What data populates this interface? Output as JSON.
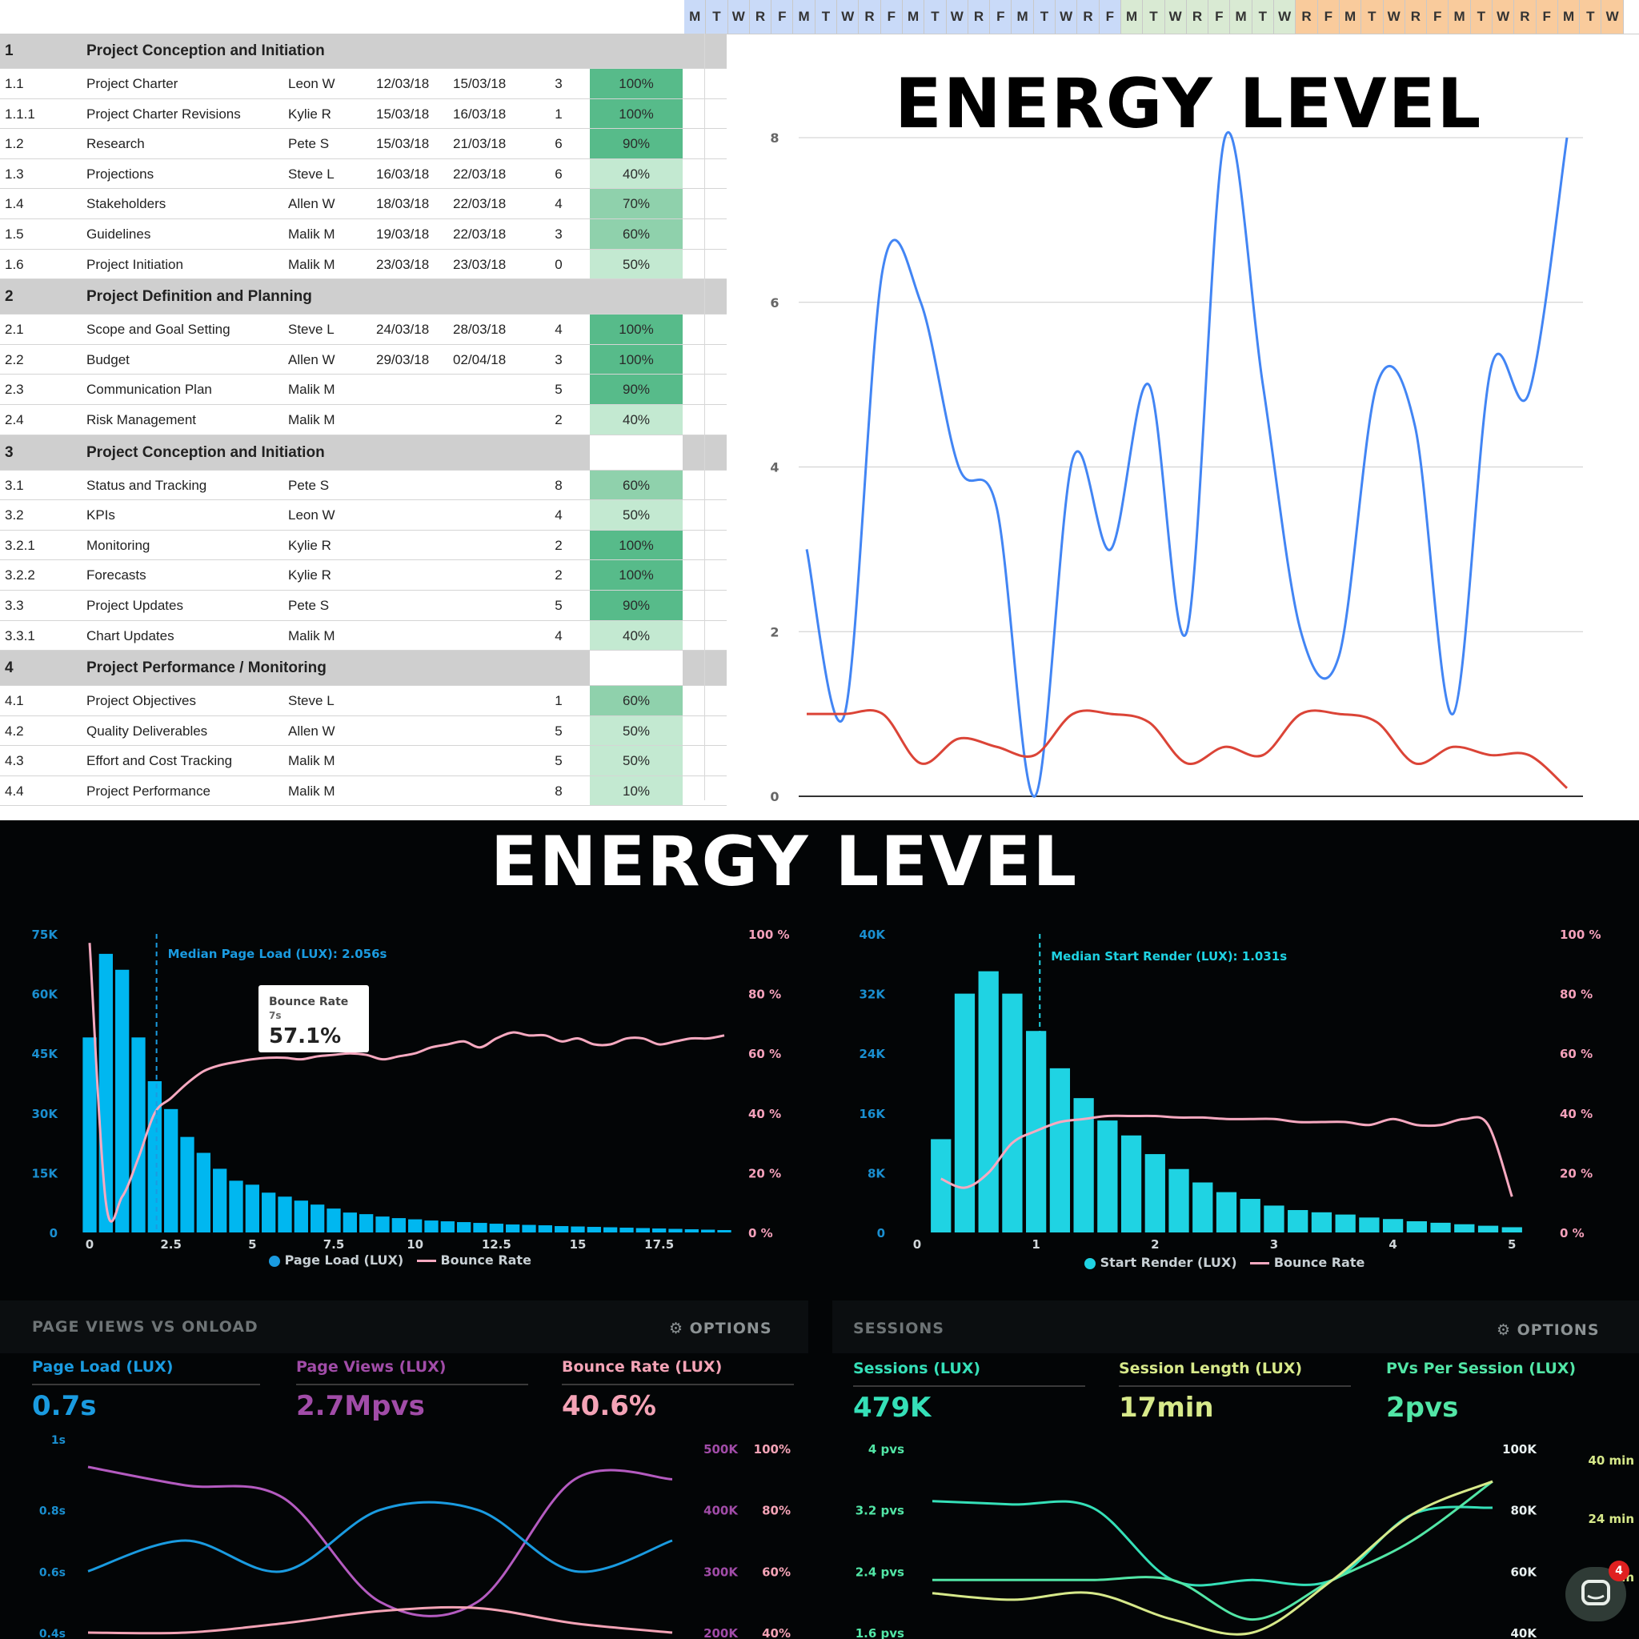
{
  "day_letters": [
    "M",
    "T",
    "W",
    "R",
    "F",
    "M",
    "T",
    "W",
    "R",
    "F",
    "M",
    "T",
    "W",
    "R",
    "F",
    "M",
    "T",
    "W",
    "R",
    "F",
    "M",
    "T",
    "W",
    "R",
    "F",
    "M",
    "T",
    "W",
    "R",
    "F",
    "M",
    "T",
    "W",
    "R",
    "F",
    "M",
    "T",
    "W",
    "R",
    "F",
    "M",
    "T",
    "W"
  ],
  "sheet_rows": [
    {
      "type": "group",
      "id": "1",
      "name": "Project Conception and Initiation"
    },
    {
      "type": "task",
      "id": "1.1",
      "name": "Project Charter",
      "owner": "Leon W",
      "start": "12/03/18",
      "end": "15/03/18",
      "days": "3",
      "pct": "100%"
    },
    {
      "type": "task",
      "id": "1.1.1",
      "name": "Project Charter Revisions",
      "owner": "Kylie R",
      "start": "15/03/18",
      "end": "16/03/18",
      "days": "1",
      "pct": "100%"
    },
    {
      "type": "task",
      "id": "1.2",
      "name": "Research",
      "owner": "Pete S",
      "start": "15/03/18",
      "end": "21/03/18",
      "days": "6",
      "pct": "90%"
    },
    {
      "type": "task",
      "id": "1.3",
      "name": "Projections",
      "owner": "Steve L",
      "start": "16/03/18",
      "end": "22/03/18",
      "days": "6",
      "pct": "40%"
    },
    {
      "type": "task",
      "id": "1.4",
      "name": "Stakeholders",
      "owner": "Allen W",
      "start": "18/03/18",
      "end": "22/03/18",
      "days": "4",
      "pct": "70%"
    },
    {
      "type": "task",
      "id": "1.5",
      "name": "Guidelines",
      "owner": "Malik M",
      "start": "19/03/18",
      "end": "22/03/18",
      "days": "3",
      "pct": "60%"
    },
    {
      "type": "task",
      "id": "1.6",
      "name": "Project Initiation",
      "owner": "Malik M",
      "start": "23/03/18",
      "end": "23/03/18",
      "days": "0",
      "pct": "50%"
    },
    {
      "type": "group",
      "id": "2",
      "name": "Project Definition and Planning"
    },
    {
      "type": "task",
      "id": "2.1",
      "name": "Scope and Goal Setting",
      "owner": "Steve L",
      "start": "24/03/18",
      "end": "28/03/18",
      "days": "4",
      "pct": "100%"
    },
    {
      "type": "task",
      "id": "2.2",
      "name": "Budget",
      "owner": "Allen W",
      "start": "29/03/18",
      "end": "02/04/18",
      "days": "3",
      "pct": "100%"
    },
    {
      "type": "task",
      "id": "2.3",
      "name": "Communication Plan",
      "owner": "Malik M",
      "start": "",
      "end": "",
      "days": "5",
      "pct": "90%"
    },
    {
      "type": "task",
      "id": "2.4",
      "name": "Risk Management",
      "owner": "Malik M",
      "start": "",
      "end": "",
      "days": "2",
      "pct": "40%"
    },
    {
      "type": "group",
      "id": "3",
      "name": "Project Conception and Initiation"
    },
    {
      "type": "task",
      "id": "3.1",
      "name": "Status and Tracking",
      "owner": "Pete S",
      "start": "",
      "end": "",
      "days": "8",
      "pct": "60%"
    },
    {
      "type": "task",
      "id": "3.2",
      "name": "KPIs",
      "owner": "Leon W",
      "start": "",
      "end": "",
      "days": "4",
      "pct": "50%"
    },
    {
      "type": "task",
      "id": "3.2.1",
      "name": "Monitoring",
      "owner": "Kylie R",
      "start": "",
      "end": "",
      "days": "2",
      "pct": "100%"
    },
    {
      "type": "task",
      "id": "3.2.2",
      "name": "Forecasts",
      "owner": "Kylie R",
      "start": "",
      "end": "",
      "days": "2",
      "pct": "100%"
    },
    {
      "type": "task",
      "id": "3.3",
      "name": "Project Updates",
      "owner": "Pete S",
      "start": "",
      "end": "",
      "days": "5",
      "pct": "90%"
    },
    {
      "type": "task",
      "id": "3.3.1",
      "name": "Chart Updates",
      "owner": "Malik M",
      "start": "",
      "end": "",
      "days": "4",
      "pct": "40%"
    },
    {
      "type": "group",
      "id": "4",
      "name": "Project Performance / Monitoring"
    },
    {
      "type": "task",
      "id": "4.1",
      "name": "Project Objectives",
      "owner": "Steve L",
      "start": "",
      "end": "",
      "days": "1",
      "pct": "60%"
    },
    {
      "type": "task",
      "id": "4.2",
      "name": "Quality Deliverables",
      "owner": "Allen W",
      "start": "",
      "end": "",
      "days": "5",
      "pct": "50%"
    },
    {
      "type": "task",
      "id": "4.3",
      "name": "Effort and Cost Tracking",
      "owner": "Malik M",
      "start": "",
      "end": "",
      "days": "5",
      "pct": "50%"
    },
    {
      "type": "task",
      "id": "4.4",
      "name": "Project Performance",
      "owner": "Malik M",
      "start": "",
      "end": "",
      "days": "8",
      "pct": "10%"
    }
  ],
  "colors": {
    "pct_high": "#57bb8a",
    "pct_mid": "#8fd1ac",
    "pct_low": "#c3e9d1",
    "blue": "#4285f4",
    "red": "#db4437",
    "cyan": "#00b7f0",
    "teal": "#1fd3e3",
    "pink": "#f7a9c0",
    "purple": "#b45bc0"
  },
  "headline_top": "ENERGY LEVEL",
  "headline_bottom": "ENERGY LEVEL",
  "chart_data": [
    {
      "type": "line",
      "title": "",
      "ylim": [
        0,
        8
      ],
      "yticks": [
        "0",
        "2",
        "4",
        "6",
        "8"
      ],
      "series": [
        {
          "values": [
            3,
            1,
            6.4,
            6,
            4,
            3.5,
            0,
            4.1,
            3,
            5,
            2,
            8,
            5,
            2,
            1.7,
            5,
            4.5,
            1,
            5.2,
            4.9,
            8
          ]
        },
        {
          "values": [
            1,
            1,
            1,
            0.4,
            0.7,
            0.6,
            0.5,
            1,
            1,
            0.9,
            0.4,
            0.6,
            0.5,
            1,
            1,
            0.9,
            0.4,
            0.6,
            0.5,
            0.5,
            0.1
          ]
        }
      ]
    },
    {
      "type": "bar",
      "annotation": "Median Page Load (LUX): 2.056s",
      "tooltip": {
        "title": "Bounce Rate",
        "sub": "7s",
        "value": "57.1%"
      },
      "yticks_left": [
        "0",
        "15K",
        "30K",
        "45K",
        "60K",
        "75K"
      ],
      "yticks_right": [
        "0 %",
        "20 %",
        "40 %",
        "60 %",
        "80 %",
        "100 %"
      ],
      "xticks": [
        "0",
        "2.5",
        "5",
        "7.5",
        "10",
        "12.5",
        "15",
        "17.5"
      ],
      "x": [
        0,
        0.5,
        1,
        1.5,
        2,
        2.5,
        3,
        3.5,
        4,
        4.5,
        5,
        5.5,
        6,
        6.5,
        7,
        7.5,
        8,
        8.5,
        9,
        9.5,
        10,
        10.5,
        11,
        11.5,
        12,
        12.5,
        13,
        13.5,
        14,
        14.5,
        15,
        15.5,
        16,
        16.5,
        17,
        17.5,
        18,
        18.5,
        19,
        19.5
      ],
      "series": [
        {
          "name": "Page Load (LUX)",
          "values": [
            49,
            70,
            66,
            49,
            38,
            31,
            24,
            20,
            16,
            13,
            12,
            10,
            9,
            8,
            7,
            6,
            5,
            4.6,
            4,
            3.6,
            3.3,
            3,
            2.8,
            2.6,
            2.4,
            2.2,
            2,
            1.9,
            1.8,
            1.6,
            1.5,
            1.4,
            1.3,
            1.2,
            1.1,
            1,
            0.9,
            0.8,
            0.7,
            0.6
          ]
        },
        {
          "name": "Bounce Rate",
          "values": [
            97,
            10,
            12,
            25,
            40,
            45,
            50,
            54,
            56,
            57.1,
            58,
            58.5,
            58.5,
            58,
            59,
            59.5,
            60,
            59.5,
            58,
            59,
            60,
            62,
            63,
            64,
            62,
            65,
            67,
            66,
            66,
            64,
            65,
            63,
            63,
            65,
            65,
            63,
            64,
            65,
            65,
            66
          ]
        }
      ],
      "ylim": [
        0,
        75000
      ]
    },
    {
      "type": "bar",
      "annotation": "Median Start Render (LUX): 1.031s",
      "yticks_left": [
        "0",
        "8K",
        "16K",
        "24K",
        "32K",
        "40K"
      ],
      "yticks_right": [
        "0 %",
        "20 %",
        "40 %",
        "60 %",
        "80 %",
        "100 %"
      ],
      "xticks": [
        "0",
        "1",
        "2",
        "3",
        "4",
        "5"
      ],
      "x": [
        0.2,
        0.4,
        0.6,
        0.8,
        1,
        1.2,
        1.4,
        1.6,
        1.8,
        2,
        2.2,
        2.4,
        2.6,
        2.8,
        3,
        3.2,
        3.4,
        3.6,
        3.8,
        4,
        4.2,
        4.4,
        4.6,
        4.8,
        5
      ],
      "series": [
        {
          "name": "Start Render (LUX)",
          "values": [
            12.5,
            32,
            35,
            32,
            27,
            22,
            18,
            15,
            13,
            10.5,
            8.5,
            6.7,
            5.4,
            4.5,
            3.6,
            3,
            2.7,
            2.4,
            2,
            1.8,
            1.5,
            1.3,
            1.1,
            0.9,
            0.7
          ]
        },
        {
          "name": "Bounce Rate",
          "values": [
            18,
            15,
            20,
            30,
            34,
            37,
            38,
            39,
            39,
            39,
            38.5,
            38.5,
            38,
            38,
            38,
            37,
            37,
            37,
            36,
            38,
            36,
            36,
            38,
            36,
            12
          ]
        }
      ],
      "ylim": [
        0,
        40000
      ]
    },
    {
      "type": "line",
      "yticks_left": [
        "0.4s",
        "0.6s",
        "0.8s",
        "1s"
      ],
      "yticks_mid": [
        "200K",
        "300K",
        "400K",
        "500K"
      ],
      "yticks_right": [
        "40%",
        "60%",
        "80%",
        "100%"
      ],
      "series": [
        {
          "name": "Page Load (LUX)",
          "values": [
            0.6,
            0.7,
            0.6,
            0.8,
            0.8,
            0.6,
            0.7
          ]
        },
        {
          "name": "Page Views (LUX)",
          "values": [
            470,
            440,
            420,
            250,
            250,
            450,
            450
          ]
        },
        {
          "name": "Bounce Rate (LUX)",
          "values": [
            40,
            40,
            43,
            47,
            48,
            43,
            40
          ]
        }
      ]
    },
    {
      "type": "line",
      "yticks_left": [
        "1.6 pvs",
        "2.4 pvs",
        "3.2 pvs",
        "4 pvs"
      ],
      "yticks_mid": [
        "40K",
        "60K",
        "80K",
        "100K"
      ],
      "yticks_right": [
        "32 min",
        "24 min",
        "40 min"
      ],
      "series": [
        {
          "name": "Sessions (LUX)",
          "values": [
            3.2,
            3.15,
            3.1,
            2,
            2,
            2,
            3,
            3.1
          ]
        },
        {
          "name": "Session Length (LUX)",
          "values": [
            2,
            2,
            2,
            2,
            1.4,
            2,
            2.6,
            3.5
          ]
        },
        {
          "name": "PVs Per Session (LUX)",
          "values": [
            1.8,
            1.7,
            1.8,
            1.4,
            1.2,
            2,
            3,
            3.5
          ]
        }
      ]
    }
  ],
  "panel_left": {
    "title": "PAGE VIEWS VS ONLOAD",
    "options": "OPTIONS",
    "metrics": [
      {
        "label": "Page Load (LUX)",
        "value": "0.7s",
        "color": "#1a9be0"
      },
      {
        "label": "Page Views (LUX)",
        "value": "2.7Mpvs",
        "color": "#a14ca8"
      },
      {
        "label": "Bounce Rate (LUX)",
        "value": "40.6%",
        "color": "#f4a3b6"
      }
    ]
  },
  "panel_right": {
    "title": "SESSIONS",
    "options": "OPTIONS",
    "metrics": [
      {
        "label": "Sessions (LUX)",
        "value": "479K",
        "color": "#35e0b8"
      },
      {
        "label": "Session Length (LUX)",
        "value": "17min",
        "color": "#d7e98a"
      },
      {
        "label": "PVs Per Session (LUX)",
        "value": "2pvs",
        "color": "#52e6a6"
      }
    ]
  },
  "legend_left": {
    "a": "Page Load (LUX)",
    "b": "Bounce Rate"
  },
  "legend_right": {
    "a": "Start Render (LUX)",
    "b": "Bounce Rate"
  },
  "chat_badge": "4"
}
